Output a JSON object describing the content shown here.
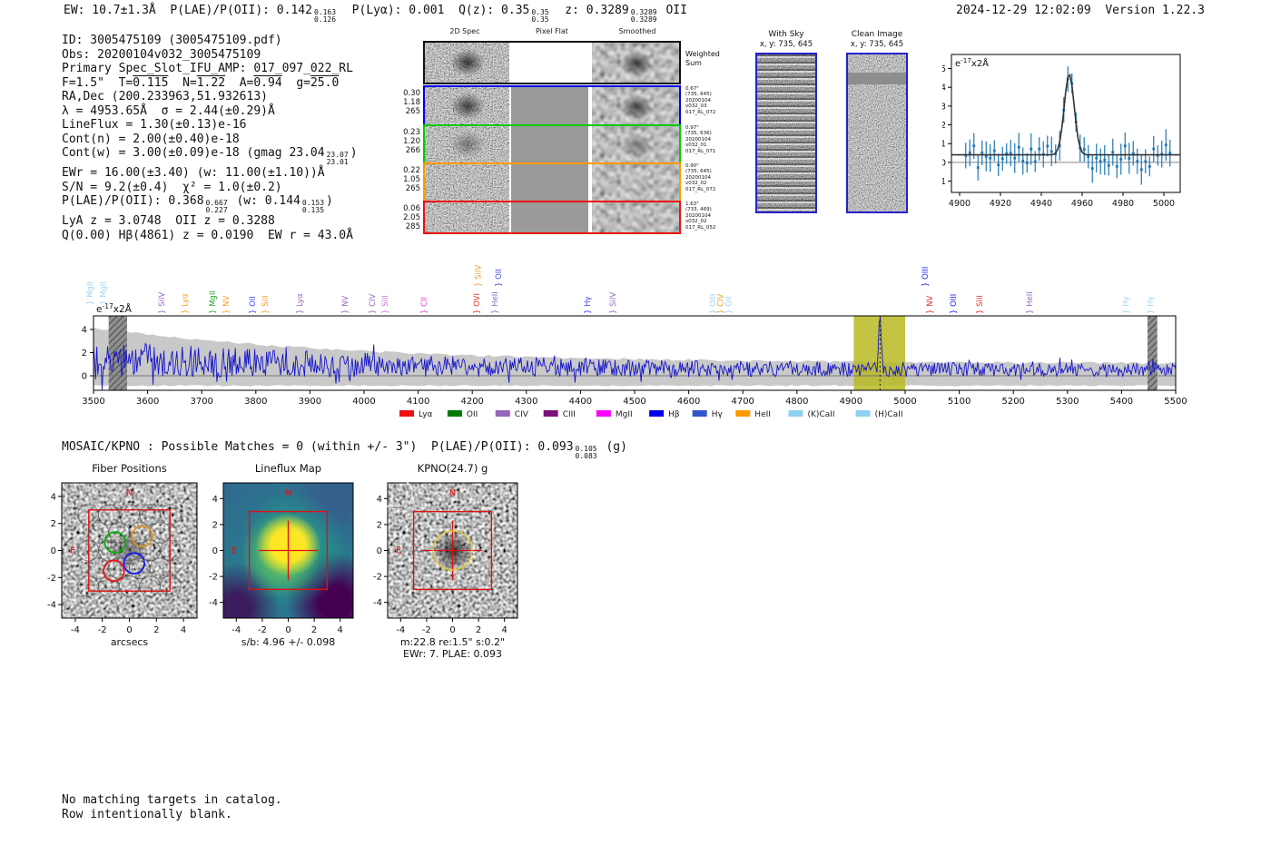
{
  "header": {
    "left_segments": [
      {
        "t": "EW: 10.7±1.3Å  P(LAE)/P(OII): 0.142"
      },
      {
        "frac": [
          "0.163",
          "0.126"
        ]
      },
      {
        "t": "  P(Lyα): 0.001  Q(z): 0.35"
      },
      {
        "frac": [
          "0.35",
          "0.35"
        ]
      },
      {
        "t": "  z: 0.3289"
      },
      {
        "frac": [
          "0.3289",
          "0.3289"
        ]
      },
      {
        "t": " OII"
      }
    ],
    "timestamp": "2024-12-29 12:02:09  Version 1.22.3"
  },
  "info": {
    "lines": [
      [
        {
          "t": "ID: 3005475109 (3005475109.pdf)"
        }
      ],
      [
        {
          "t": "Obs: 20200104v032_3005475109"
        }
      ],
      [
        {
          "t": "Primary Spec_Slot_IFU_AMP: 017_097_022_RL"
        }
      ],
      [
        {
          "t": "F=1.5\"  T="
        },
        {
          "t": "0.115",
          "ovl": true
        },
        {
          "t": "  N="
        },
        {
          "t": "1.22",
          "ovl": true
        },
        {
          "t": "  A="
        },
        {
          "t": "0.94",
          "ovl": true
        },
        {
          "t": "  g="
        },
        {
          "t": "25.0",
          "ovl": true
        }
      ],
      [
        {
          "t": "RA,Dec (200.233963,51.932613)"
        }
      ],
      [
        {
          "t": "λ = 4953.65Å  σ = 2.44(±0.29)Å"
        }
      ],
      [
        {
          "t": "LineFlux = 1.30(±0.13)e-16"
        }
      ],
      [
        {
          "t": "Cont(n) = 2.00(±0.40)e-18"
        }
      ],
      [
        {
          "t": "Cont(w) = 3.00(±0.09)e-18 (gmag 23.04"
        },
        {
          "frac": [
            "23.07",
            "23.01"
          ]
        },
        {
          "t": ")"
        }
      ],
      [
        {
          "t": "EWr = 16.00(±3.40) (w: 11.00(±1.10))Å"
        }
      ],
      [
        {
          "t": "S/N = 9.2(±0.4)  χ² = 1.0(±0.2)"
        }
      ],
      [
        {
          "t": "P(LAE)/P(OII): 0.368"
        },
        {
          "frac": [
            "0.667",
            "0.227"
          ]
        },
        {
          "t": " (w: 0.144"
        },
        {
          "frac": [
            "0.153",
            "0.135"
          ]
        },
        {
          "t": ")"
        }
      ],
      [
        {
          "t": "LyA z = 3.0748  OII z = 0.3288"
        }
      ],
      [
        {
          "t": "Q(0.00) Hβ(4861) z = 0.0190  EW r = 43.0Å"
        }
      ]
    ]
  },
  "spec2d": {
    "col_headers": [
      "2D Spec",
      "Pixel Flat",
      "Smoothed"
    ],
    "rows": [
      {
        "name": "weighted-sum",
        "border": "#111111",
        "left": [],
        "right": [
          "Weighted",
          "Sum"
        ],
        "flat": "#ffffff",
        "blob": 0.85
      },
      {
        "name": "fiber-1",
        "border": "#0000ee",
        "left": [
          "0.30",
          "1.18",
          "265"
        ],
        "right": [
          "0.67\"",
          "(735, 645)",
          "20200104",
          "v032_03",
          "017_RL_072"
        ],
        "flat": "#9a9a9a",
        "blob": 0.8
      },
      {
        "name": "fiber-2",
        "border": "#00cc00",
        "left": [
          "0.23",
          "1.20",
          "266"
        ],
        "right": [
          "0.97\"",
          "(735, 636)",
          "20200104",
          "v032_01",
          "017_RL_071"
        ],
        "flat": "#9a9a9a",
        "blob": 0.45
      },
      {
        "name": "fiber-3",
        "border": "#ff9900",
        "left": [
          "0.22",
          "1.05",
          "265"
        ],
        "right": [
          "0.90\"",
          "(735, 645)",
          "20200104",
          "v032_02",
          "017_RL_072"
        ],
        "flat": "#9a9a9a",
        "blob": 0.2
      },
      {
        "name": "fiber-4",
        "border": "#ee1111",
        "left": [
          "0.06",
          "2.05",
          "285"
        ],
        "right": [
          "1.63\"",
          "(733, 469)",
          "20200104",
          "v032_02",
          "017_RL_052"
        ],
        "flat": "#9a9a9a",
        "blob": 0.15
      }
    ]
  },
  "sky_panels": {
    "border_color": "#2222cc",
    "with_sky": {
      "title": "With Sky",
      "coords": "x, y: 735, 645"
    },
    "clean": {
      "title": "Clean Image",
      "coords": "x, y: 735, 645"
    }
  },
  "mosaic": {
    "segments": [
      {
        "t": "MOSAIC/KPNO : Possible Matches = 0 (within +/- 3\")  P(LAE)/P(OII): 0.093"
      },
      {
        "frac": [
          "0.105",
          "0.083"
        ]
      },
      {
        "t": " (g)"
      }
    ]
  },
  "footer": {
    "lines": [
      "No matching targets in catalog.",
      "Row intentionally blank."
    ]
  },
  "chart_data": [
    {
      "id": "line-fit-plot",
      "type": "scatter",
      "unit_label": {
        "pre": "e",
        "sup": "-17",
        "post": "x2Å"
      },
      "xlim": [
        4896,
        5008
      ],
      "ylim": [
        -1.6,
        5.75
      ],
      "xticks": [
        4900,
        4920,
        4940,
        4960,
        4980,
        5000
      ],
      "yticks": [
        -1,
        0,
        1,
        2,
        3,
        4,
        5
      ],
      "gaussian_fit": {
        "center": 4953.65,
        "sigma": 2.44,
        "amplitude": 4.3,
        "baseline": 0.4
      },
      "marker_color": "#1f77b4",
      "fit_color": "#333333",
      "description": "observed flux points with error bars and gaussian line fit at 4953.65 Å"
    },
    {
      "id": "full-spectrum-plot",
      "type": "line",
      "unit_label": {
        "pre": "e",
        "sup": "-17",
        "post": "x2Å"
      },
      "xlim": [
        3500,
        5500
      ],
      "xticks": [
        3500,
        3600,
        3700,
        3800,
        3900,
        4000,
        4100,
        4200,
        4300,
        4400,
        4500,
        4600,
        4700,
        4800,
        4900,
        5000,
        5100,
        5200,
        5300,
        5400,
        5500
      ],
      "yticks": [
        0,
        2,
        4
      ],
      "line_color": "#1515cc",
      "error_band_color": "#c9c9c9",
      "peak": {
        "center": 4953.65,
        "height": 4.3
      },
      "highlight_band": {
        "x0": 4905,
        "x1": 5000,
        "color": "#b8b823"
      },
      "masked_bands": [
        [
          3528,
          3562
        ],
        [
          5448,
          5466
        ]
      ],
      "emission_line_markers": [
        {
          "label": "MgII",
          "color": "#9bd4f0",
          "wave": 3498,
          "tier": 2
        },
        {
          "label": "MgII",
          "color": "#9bd4f0",
          "wave": 3523,
          "tier": 2
        },
        {
          "label": "SiIV",
          "color": "#9467bd",
          "wave": 3631,
          "tier": 0
        },
        {
          "label": "Lyα",
          "color": "#f0a028",
          "wave": 3674,
          "tier": 0
        },
        {
          "label": "MgII",
          "color": "#2ca02c",
          "wave": 3725,
          "tier": 0
        },
        {
          "label": "NV",
          "color": "#f0a028",
          "wave": 3750,
          "tier": 0
        },
        {
          "label": "OII",
          "color": "#4444ee",
          "wave": 3799,
          "tier": 0
        },
        {
          "label": "SiII",
          "color": "#f0a028",
          "wave": 3822,
          "tier": 0
        },
        {
          "label": "Lyα",
          "color": "#9467bd",
          "wave": 3886,
          "tier": 0
        },
        {
          "label": "NV",
          "color": "#9467bd",
          "wave": 3970,
          "tier": 0
        },
        {
          "label": "CIV",
          "color": "#9467bd",
          "wave": 4020,
          "tier": 0
        },
        {
          "label": "SiII",
          "color": "#cf6fd6",
          "wave": 4044,
          "tier": 0
        },
        {
          "label": "CII",
          "color": "#e040e0",
          "wave": 4116,
          "tier": 0
        },
        {
          "label": "OVI",
          "color": "#e03030",
          "wave": 4213,
          "tier": 0
        },
        {
          "label": "SiIV",
          "color": "#f0a028",
          "wave": 4216,
          "tier": 1
        },
        {
          "label": "HeII",
          "color": "#9467bd",
          "wave": 4247,
          "tier": 0
        },
        {
          "label": "OII",
          "color": "#4444ee",
          "wave": 4253,
          "tier": 1
        },
        {
          "label": "Hγ",
          "color": "#4444ee",
          "wave": 4418,
          "tier": 0
        },
        {
          "label": "SiIV",
          "color": "#9467bd",
          "wave": 4465,
          "tier": 0
        },
        {
          "label": "OIII",
          "color": "#9bd4f0",
          "wave": 4649,
          "tier": 0
        },
        {
          "label": "CIV",
          "color": "#f0a028",
          "wave": 4664,
          "tier": 0
        },
        {
          "label": "OII",
          "color": "#9bd4f0",
          "wave": 4679,
          "tier": 0
        },
        {
          "label": "OIII",
          "color": "#2222ee",
          "wave": 5042,
          "tier": 1
        },
        {
          "label": "NV",
          "color": "#e03030",
          "wave": 5050,
          "tier": 0
        },
        {
          "label": "OIII",
          "color": "#2222ee",
          "wave": 5094,
          "tier": 0
        },
        {
          "label": "SiII",
          "color": "#e03030",
          "wave": 5143,
          "tier": 0
        },
        {
          "label": "HeII",
          "color": "#9467bd",
          "wave": 5235,
          "tier": 0
        },
        {
          "label": "Hγ",
          "color": "#9bd4f0",
          "wave": 5413,
          "tier": 0
        },
        {
          "label": "Hγ",
          "color": "#9bd4f0",
          "wave": 5458,
          "tier": 0
        }
      ],
      "legend": [
        {
          "label": "Lyα",
          "color": "#ee1111"
        },
        {
          "label": "OII",
          "color": "#007d00"
        },
        {
          "label": "CIV",
          "color": "#9467bd"
        },
        {
          "label": "CIII",
          "color": "#7b0f7b"
        },
        {
          "label": "MgII",
          "color": "#ff00ff"
        },
        {
          "label": "Hβ",
          "color": "#0000ee"
        },
        {
          "label": "Hγ",
          "color": "#3355cc"
        },
        {
          "label": "HeII",
          "color": "#ff9900"
        },
        {
          "label": "(K)CaII",
          "color": "#8fd0ee"
        },
        {
          "label": "(H)CaII",
          "color": "#8fd0ee"
        }
      ]
    },
    {
      "id": "fiber-positions-cutout",
      "type": "cutout",
      "title": "Fiber Positions",
      "xlabel": "arcsecs",
      "ticks": [
        -4,
        -2,
        0,
        2,
        4
      ],
      "box_arcsec": 3,
      "compass": {
        "north": "N",
        "east": "E"
      },
      "fiber_radius_arcsec": 0.76,
      "colored_fibers": [
        {
          "color": "#00b400",
          "x": -1.05,
          "y": 0.6
        },
        {
          "color": "#e09820",
          "x": 0.95,
          "y": 1.05
        },
        {
          "color": "#1515ee",
          "x": 0.35,
          "y": -0.95
        },
        {
          "color": "#ee1111",
          "x": -1.15,
          "y": -1.5
        }
      ]
    },
    {
      "id": "lineflux-map-cutout",
      "type": "cutout",
      "title": "Lineflux Map",
      "caption": "s/b: 4.96 +/- 0.098",
      "ticks": [
        -4,
        -2,
        0,
        2,
        4
      ],
      "box_arcsec": 3,
      "compass": {
        "north": "N",
        "east": "E"
      }
    },
    {
      "id": "kpno-g-cutout",
      "type": "cutout",
      "title": "KPNO(24.7) g",
      "caption": "m:22.8 re:1.5\" s:0.2\"",
      "caption2": "EWr: 7. PLAE: 0.093",
      "ticks": [
        -4,
        -2,
        0,
        2,
        4
      ],
      "box_arcsec": 3,
      "aperture_radius_arcsec": 1.5,
      "aperture_color": "#e2c634",
      "compass": {
        "north": "N",
        "east": "E"
      }
    }
  ]
}
